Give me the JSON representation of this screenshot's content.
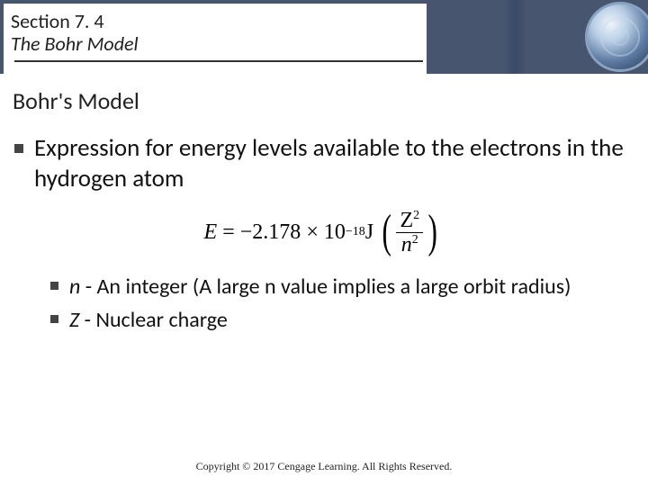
{
  "header": {
    "section_label": "Section 7. 4",
    "title": "The Bohr Model",
    "band_color": "#47556f",
    "divider_color": "#333333"
  },
  "subheading": "Bohr's Model",
  "bullets": {
    "main": "Expression for energy levels available to the electrons in the hydrogen atom",
    "sub": [
      {
        "var": "n",
        "text": " - An integer (A large n value implies a large orbit radius)"
      },
      {
        "var": "Z",
        "text": " - Nuclear charge"
      }
    ]
  },
  "formula": {
    "lhs_var": "E",
    "coefficient": "−2.178",
    "times": "×",
    "base": "10",
    "exponent": "−18",
    "unit": "J",
    "frac_num_base": "Z",
    "frac_num_exp": "2",
    "frac_den_base": "n",
    "frac_den_exp": "2"
  },
  "footer": "Copyright © 2017 Cengage Learning. All Rights Reserved.",
  "style": {
    "background": "#ffffff",
    "text_color": "#111111",
    "bullet_marker_color": "#444444",
    "body_fontsize_main": 27,
    "body_fontsize_sub": 24,
    "subhead_fontsize": 26,
    "footer_fontsize": 12
  }
}
